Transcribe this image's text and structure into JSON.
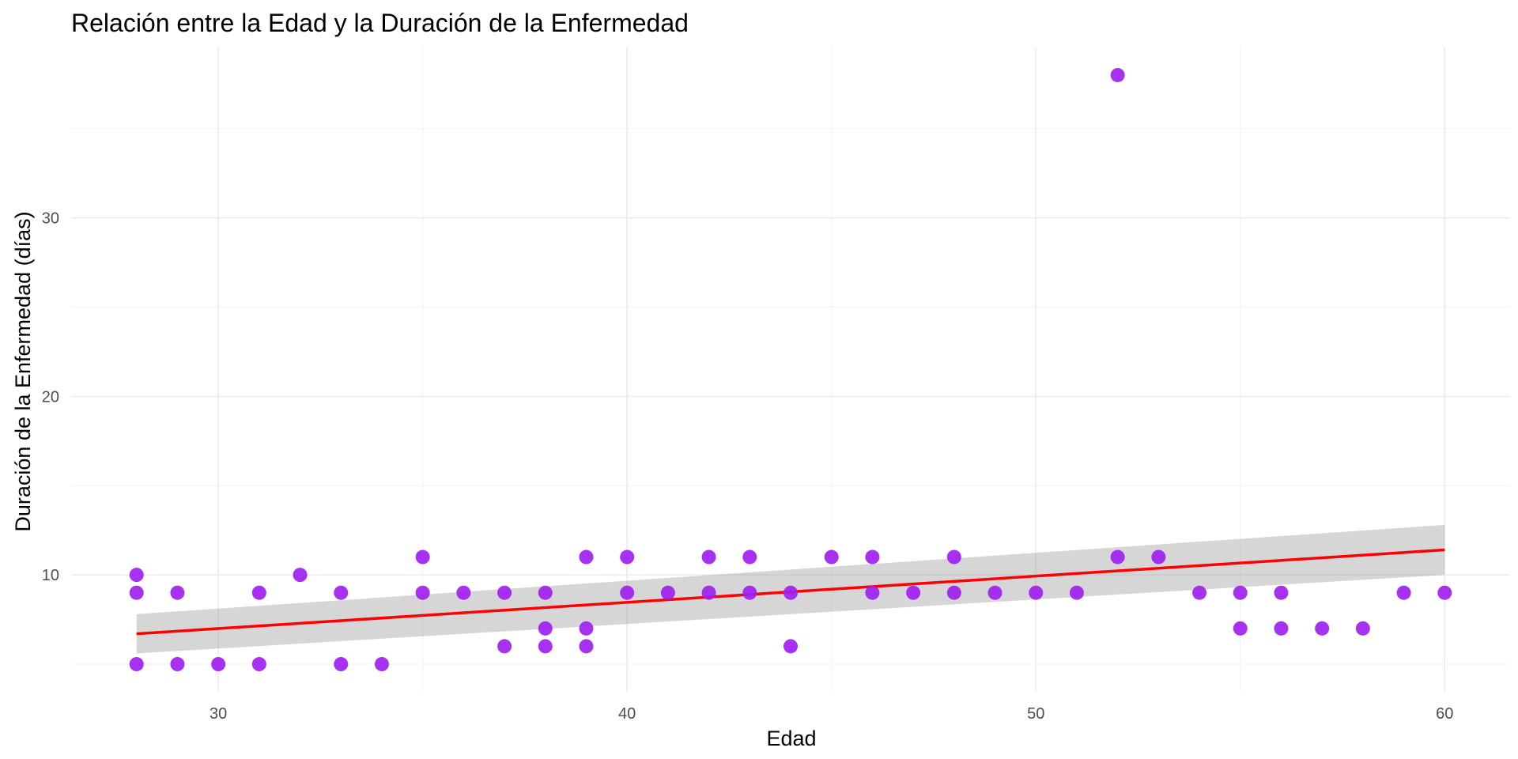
{
  "chart_data": {
    "type": "scatter",
    "title": "Relación entre la Edad y la Duración de la Enfermedad",
    "xlabel": "Edad",
    "ylabel": "Duración de la Enfermedad (días)",
    "xlim": [
      26.4,
      61.6
    ],
    "ylim": [
      3.45,
      39.55
    ],
    "x_ticks": [
      30,
      40,
      50,
      60
    ],
    "y_ticks": [
      10,
      20,
      30
    ],
    "grid": true,
    "legend": "none",
    "point_color": "#a020f0",
    "trend_color": "#ff0000",
    "band_color": "#999999",
    "points": [
      {
        "x": 28,
        "y": 10
      },
      {
        "x": 28,
        "y": 9
      },
      {
        "x": 28,
        "y": 5
      },
      {
        "x": 29,
        "y": 9
      },
      {
        "x": 29,
        "y": 5
      },
      {
        "x": 30,
        "y": 5
      },
      {
        "x": 31,
        "y": 9
      },
      {
        "x": 31,
        "y": 5
      },
      {
        "x": 32,
        "y": 10
      },
      {
        "x": 33,
        "y": 9
      },
      {
        "x": 33,
        "y": 5
      },
      {
        "x": 34,
        "y": 5
      },
      {
        "x": 35,
        "y": 11
      },
      {
        "x": 35,
        "y": 9
      },
      {
        "x": 36,
        "y": 9
      },
      {
        "x": 37,
        "y": 9
      },
      {
        "x": 37,
        "y": 6
      },
      {
        "x": 38,
        "y": 9
      },
      {
        "x": 38,
        "y": 7
      },
      {
        "x": 38,
        "y": 6
      },
      {
        "x": 39,
        "y": 11
      },
      {
        "x": 39,
        "y": 7
      },
      {
        "x": 39,
        "y": 6
      },
      {
        "x": 40,
        "y": 11
      },
      {
        "x": 40,
        "y": 9
      },
      {
        "x": 41,
        "y": 9
      },
      {
        "x": 42,
        "y": 11
      },
      {
        "x": 42,
        "y": 9
      },
      {
        "x": 43,
        "y": 11
      },
      {
        "x": 43,
        "y": 9
      },
      {
        "x": 44,
        "y": 9
      },
      {
        "x": 44,
        "y": 6
      },
      {
        "x": 45,
        "y": 11
      },
      {
        "x": 46,
        "y": 11
      },
      {
        "x": 46,
        "y": 9
      },
      {
        "x": 47,
        "y": 9
      },
      {
        "x": 48,
        "y": 11
      },
      {
        "x": 48,
        "y": 9
      },
      {
        "x": 49,
        "y": 9
      },
      {
        "x": 50,
        "y": 9
      },
      {
        "x": 51,
        "y": 9
      },
      {
        "x": 52,
        "y": 38
      },
      {
        "x": 52,
        "y": 11
      },
      {
        "x": 53,
        "y": 11
      },
      {
        "x": 54,
        "y": 9
      },
      {
        "x": 55,
        "y": 9
      },
      {
        "x": 55,
        "y": 7
      },
      {
        "x": 56,
        "y": 9
      },
      {
        "x": 56,
        "y": 7
      },
      {
        "x": 57,
        "y": 7
      },
      {
        "x": 58,
        "y": 7
      },
      {
        "x": 59,
        "y": 9
      },
      {
        "x": 60,
        "y": 9
      }
    ],
    "trend_line": {
      "x": [
        28,
        60
      ],
      "y": [
        6.7,
        11.4
      ],
      "ci_lower": [
        5.6,
        10.0
      ],
      "ci_upper": [
        7.8,
        12.8
      ]
    }
  }
}
